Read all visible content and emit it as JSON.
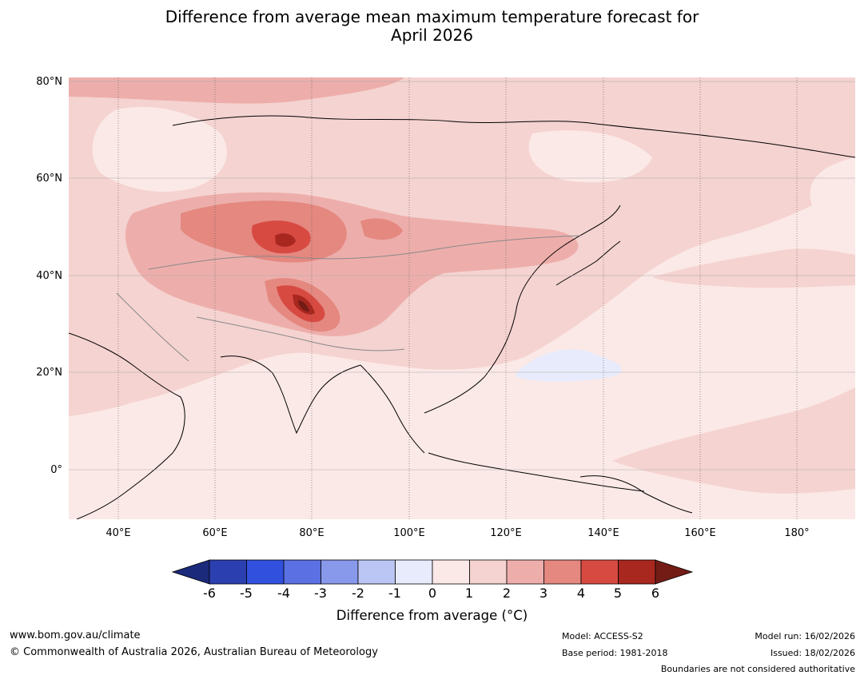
{
  "title": {
    "line1": "Difference from average mean maximum temperature forecast for",
    "line2": "April 2026"
  },
  "axes": {
    "lat_labels": [
      "80°N",
      "60°N",
      "40°N",
      "20°N",
      "0°"
    ],
    "lon_labels": [
      "40°E",
      "60°E",
      "80°E",
      "100°E",
      "120°E",
      "140°E",
      "160°E",
      "180°"
    ]
  },
  "colorbar": {
    "ticks": [
      "-6",
      "-5",
      "-4",
      "-3",
      "-2",
      "-1",
      "0",
      "1",
      "2",
      "3",
      "4",
      "5",
      "6"
    ],
    "colors": [
      "#1b2a7a",
      "#2b3fb0",
      "#3150dd",
      "#5b70e3",
      "#8898ea",
      "#bcc6f4",
      "#e7ebfb",
      "#fbe9e7",
      "#f5d3d0",
      "#edaeab",
      "#e48880",
      "#d74a42",
      "#a8271f",
      "#731c16"
    ],
    "label": "Difference from average (°C)"
  },
  "map": {
    "background": "#fbe9e7",
    "regions": [
      {
        "name": "arctic-band",
        "level": 2
      },
      {
        "name": "west-siberia-light",
        "level": 1
      },
      {
        "name": "central-asia-anomaly",
        "level": 3
      },
      {
        "name": "kazakhstan-core",
        "level": 4
      },
      {
        "name": "tibet-core",
        "level": 5
      },
      {
        "name": "mongolia-core",
        "level": 4
      },
      {
        "name": "philippine-sea-cool",
        "level": -1
      }
    ]
  },
  "footer": {
    "website": "www.bom.gov.au/climate",
    "copyright": "© Commonwealth of Australia 2026, Australian Bureau of Meteorology",
    "model": "Model: ACCESS-S2",
    "base_period": "Base period: 1981-2018",
    "model_run": "Model run: 16/02/2026",
    "issued": "Issued: 18/02/2026",
    "disclaimer": "Boundaries are not considered authoritative"
  }
}
